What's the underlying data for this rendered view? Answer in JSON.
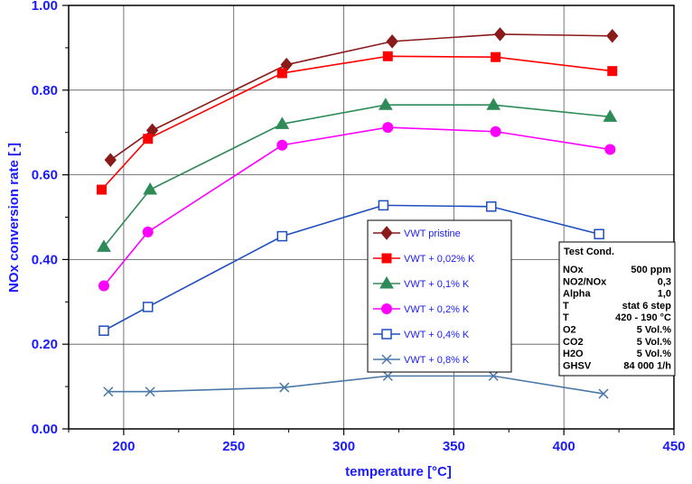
{
  "chart_data": {
    "type": "line",
    "xlabel": "temperature [°C]",
    "ylabel": "NOx conversion rate [-]",
    "xlim": [
      175,
      450
    ],
    "ylim": [
      0,
      1.0
    ],
    "x_ticks": [
      "200",
      "250",
      "300",
      "350",
      "400",
      "450"
    ],
    "y_ticks": [
      "0.00",
      "0.20",
      "0.40",
      "0.60",
      "0.80",
      "1.00"
    ],
    "grid": true,
    "legend_position": "center-right",
    "series": [
      {
        "name": "VWT pristine",
        "color": "#8b1a1a",
        "marker": "diamond",
        "x": [
          194,
          213,
          274,
          322,
          371,
          422
        ],
        "y": [
          0.635,
          0.705,
          0.86,
          0.915,
          0.932,
          0.928
        ]
      },
      {
        "name": "VWT + 0,02% K",
        "color": "#ff0000",
        "marker": "square",
        "x": [
          190,
          211,
          272,
          320,
          369,
          422
        ],
        "y": [
          0.565,
          0.685,
          0.84,
          0.88,
          0.878,
          0.845
        ]
      },
      {
        "name": "VWT + 0,1% K",
        "color": "#2e8b57",
        "marker": "triangle",
        "x": [
          191,
          212,
          272,
          319,
          368,
          421
        ],
        "y": [
          0.43,
          0.565,
          0.72,
          0.765,
          0.765,
          0.737
        ]
      },
      {
        "name": "VWT + 0,2% K",
        "color": "#ff00ff",
        "marker": "circle",
        "x": [
          191,
          211,
          272,
          320,
          369,
          421
        ],
        "y": [
          0.338,
          0.465,
          0.67,
          0.712,
          0.702,
          0.66
        ]
      },
      {
        "name": "VWT + 0,4% K",
        "color": "#1f4fbf",
        "marker": "open-square",
        "x": [
          191,
          211,
          272,
          318,
          367,
          416
        ],
        "y": [
          0.232,
          0.288,
          0.455,
          0.528,
          0.525,
          0.46
        ]
      },
      {
        "name": "VWT + 0,8% K",
        "color": "#4a78a8",
        "marker": "x",
        "x": [
          193,
          212,
          273,
          320,
          368,
          418
        ],
        "y": [
          0.088,
          0.088,
          0.098,
          0.125,
          0.125,
          0.083
        ]
      }
    ]
  },
  "conditions": {
    "title": "Test Cond.",
    "rows": [
      {
        "key": "NOx",
        "value": "500 ppm"
      },
      {
        "key": "NO2/NOx",
        "value": "0,3"
      },
      {
        "key": "Alpha",
        "value": "1,0"
      },
      {
        "key": "T",
        "value": "stat 6 step"
      },
      {
        "key": "T",
        "value": "420 - 190 °C"
      },
      {
        "key": "O2",
        "value": "5 Vol.%"
      },
      {
        "key": "CO2",
        "value": "5 Vol.%"
      },
      {
        "key": "H2O",
        "value": "5 Vol.%"
      },
      {
        "key": "GHSV",
        "value": "84 000 1/h"
      }
    ]
  }
}
